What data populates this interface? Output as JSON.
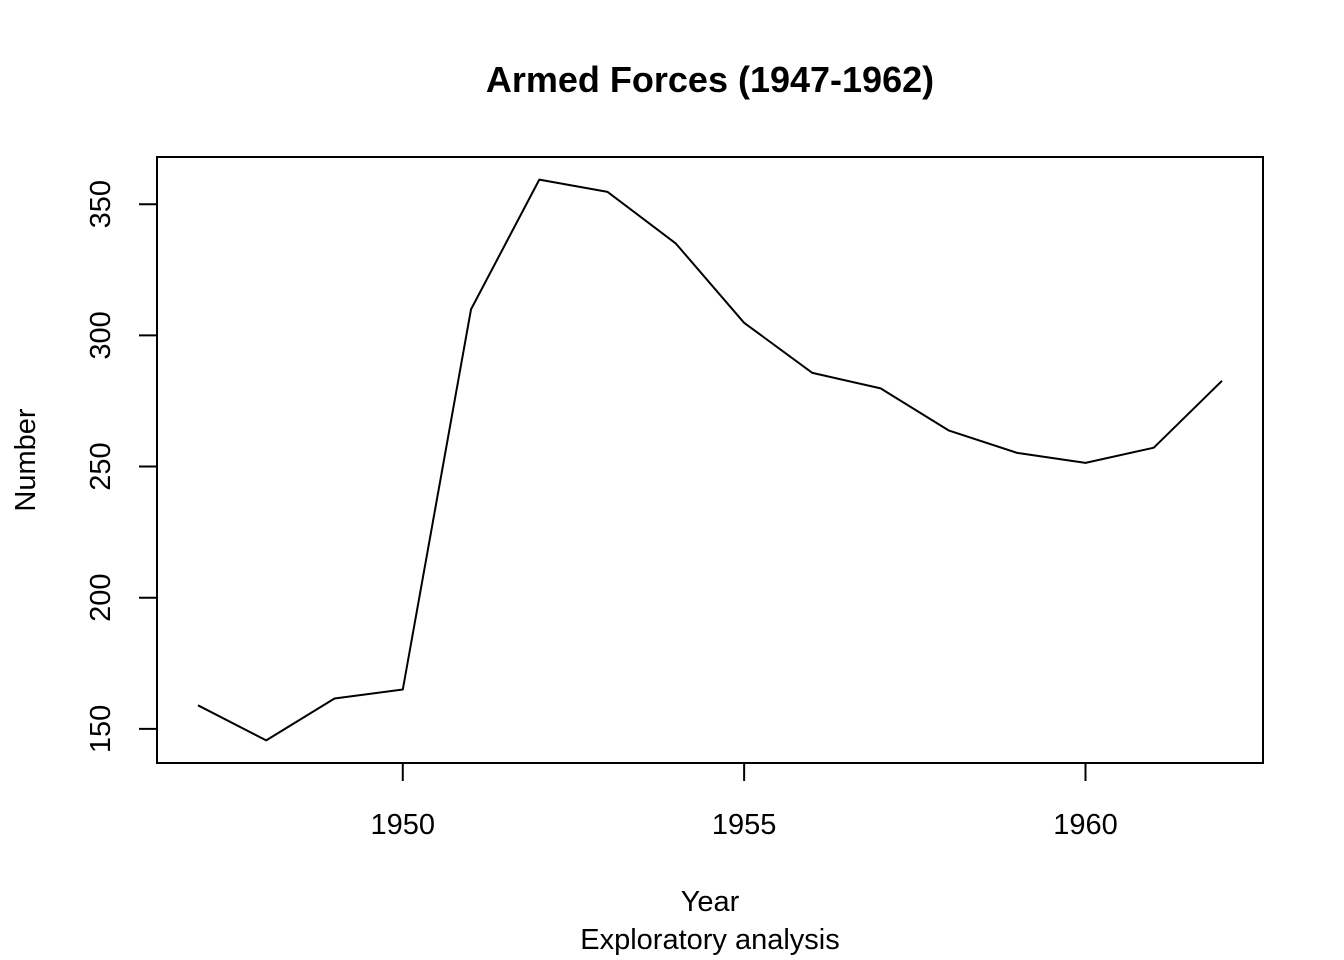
{
  "chart_data": {
    "type": "line",
    "title": "Armed Forces (1947-1962)",
    "xlabel": "Year",
    "sublabel": "Exploratory analysis",
    "ylabel": "Number",
    "xlim": [
      1946.4,
      1962.6
    ],
    "ylim": [
      137,
      368
    ],
    "x_ticks": [
      1950,
      1955,
      1960
    ],
    "y_ticks": [
      150,
      200,
      250,
      300,
      350
    ],
    "grid": false,
    "legend": "none",
    "colors": {
      "line": "#000000",
      "axis": "#000000"
    },
    "series": [
      {
        "x": [
          1947,
          1948,
          1949,
          1950,
          1951,
          1952,
          1953,
          1954,
          1955,
          1956,
          1957,
          1958,
          1959,
          1960,
          1961,
          1962
        ],
        "y": [
          159.0,
          145.6,
          161.6,
          165.0,
          309.9,
          359.4,
          354.7,
          335.0,
          304.8,
          285.7,
          279.8,
          263.7,
          255.2,
          251.4,
          257.2,
          282.7
        ]
      }
    ]
  }
}
